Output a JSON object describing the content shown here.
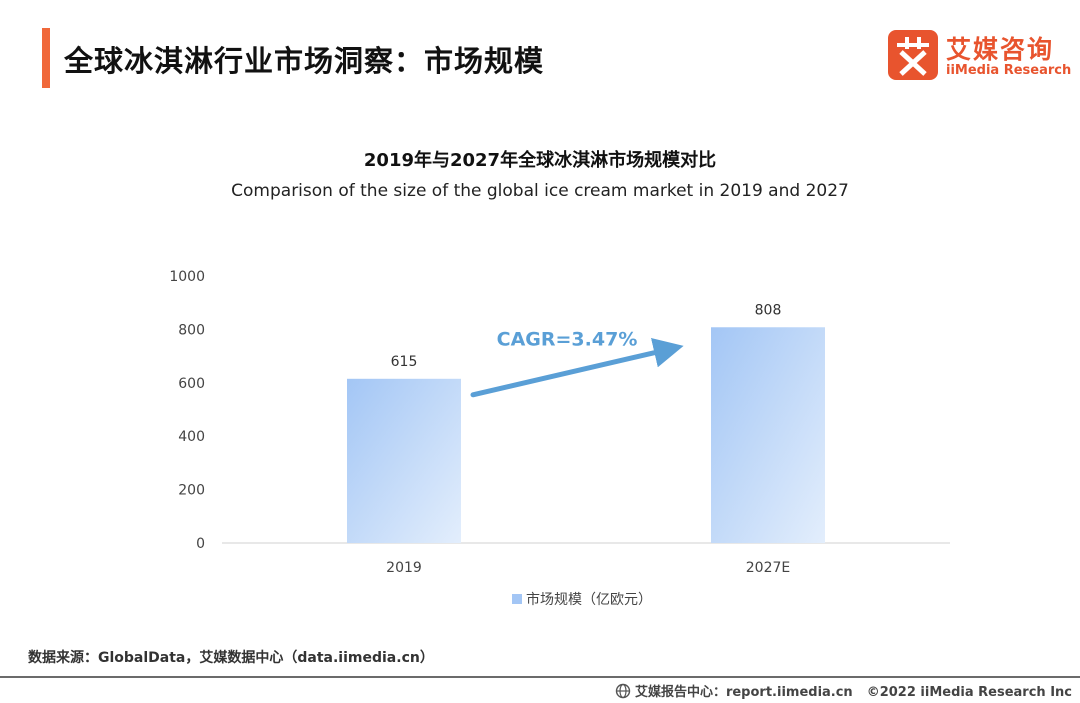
{
  "header": {
    "title": "全球冰淇淋行业市场洞察：市场规模",
    "accent_color": "#f0683a"
  },
  "logo": {
    "cn": "艾媒咨询",
    "en": "iiMedia Research",
    "color": "#e8542e",
    "icon": "iimedia-logo-icon"
  },
  "chart_data": {
    "type": "bar",
    "title": "2019年与2027年全球冰淇淋市场规模对比",
    "subtitle": "Comparison of the size of the global ice cream market in 2019 and 2027",
    "categories": [
      "2019",
      "2027E"
    ],
    "series": [
      {
        "name": "市场规模（亿欧元）",
        "values": [
          615,
          808
        ]
      }
    ],
    "data_labels": [
      "615",
      "808"
    ],
    "ylim": [
      0,
      1000
    ],
    "yticks": [
      0,
      200,
      400,
      600,
      800,
      1000
    ],
    "ytick_labels": [
      "0",
      "200",
      "400",
      "600",
      "800",
      "1000"
    ],
    "grid": false,
    "legend": "bottom",
    "bar_color_top": "#a3c6f5",
    "bar_color_bottom": "#e3eefc",
    "annotation": {
      "text": "CAGR=3.47%",
      "color": "#5a9fd6"
    }
  },
  "footer": {
    "source": "数据来源：GlobalData，艾媒数据中心（data.iimedia.cn）",
    "report_center": "艾媒报告中心：report.iimedia.cn",
    "copyright": "©2022  iiMedia Research  Inc"
  }
}
